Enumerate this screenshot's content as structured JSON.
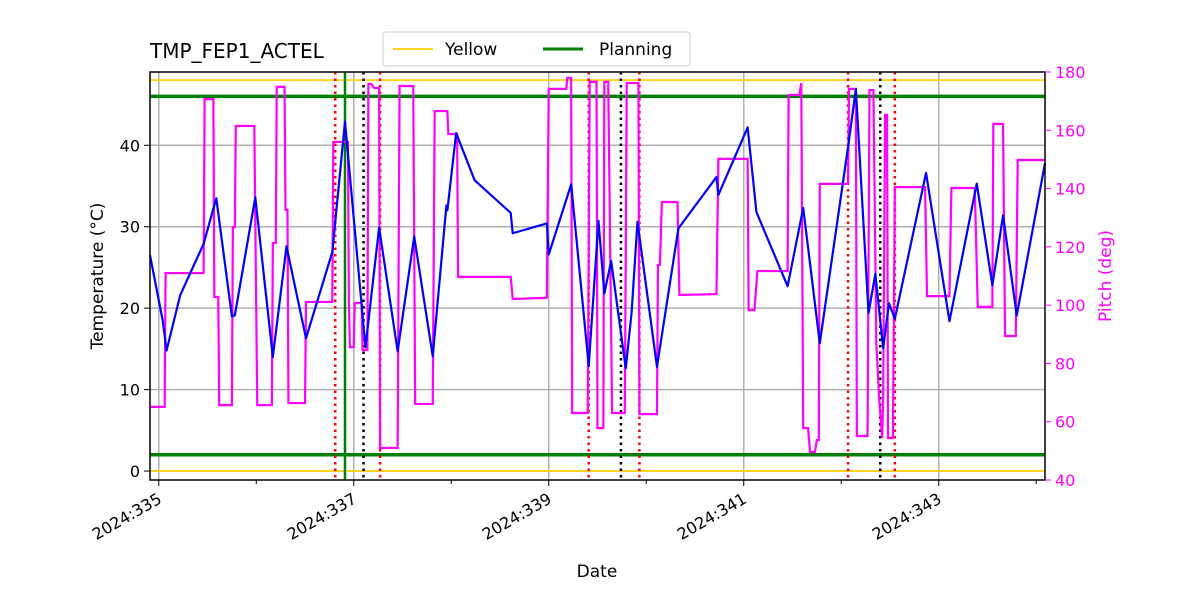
{
  "chart_data": {
    "type": "line",
    "title": "TMP_FEP1_ACTEL",
    "xlabel": "Date",
    "ylabel": "Temperature (°C)",
    "y2label": "Pitch (deg)",
    "xlim": [
      334.91,
      344.09
    ],
    "ylim": [
      -1.1,
      49.0
    ],
    "y2lim": [
      40,
      180
    ],
    "x_ticks": [
      335,
      337,
      339,
      341,
      343
    ],
    "x_tick_labels": [
      "2024:335",
      "2024:337",
      "2024:339",
      "2024:341",
      "2024:343"
    ],
    "x_minor_ticks": [
      336,
      338,
      340,
      342,
      344
    ],
    "y_ticks": [
      0,
      10,
      20,
      30,
      40
    ],
    "y2_ticks": [
      40,
      60,
      80,
      100,
      120,
      140,
      160,
      180
    ],
    "grid": true,
    "legend_placement": "top-center",
    "colors": {
      "temperature": "#0000ff",
      "pitch": "#ff00ff",
      "yellow": "#ffd21f",
      "planning": "#008000",
      "axis2": "#ff00ff",
      "red_event": "#ff0000",
      "black_event": "#000000",
      "green_event": "#008000",
      "grid": "#b0b0b0"
    },
    "limits": [
      {
        "name": "Yellow",
        "values": [
          48,
          0
        ],
        "color": "#ffd21f"
      },
      {
        "name": "Planning",
        "values": [
          46,
          2
        ],
        "color": "#008000"
      }
    ],
    "event_lines": {
      "red_dotted": [
        336.81,
        337.27,
        339.41,
        339.93,
        342.07,
        342.55
      ],
      "black_dotted": [
        337.1,
        339.74,
        342.4
      ],
      "green_solid": [
        336.91
      ]
    },
    "temperature": [
      [
        334.91,
        26.5
      ],
      [
        335.04,
        18.5
      ],
      [
        335.08,
        14.8
      ],
      [
        335.22,
        21.6
      ],
      [
        335.46,
        27.9
      ],
      [
        335.59,
        33.5
      ],
      [
        335.75,
        19.0
      ],
      [
        335.78,
        19.1
      ],
      [
        335.99,
        33.6
      ],
      [
        336.17,
        14.0
      ],
      [
        336.31,
        27.6
      ],
      [
        336.51,
        16.3
      ],
      [
        336.78,
        26.9
      ],
      [
        336.91,
        42.9
      ],
      [
        337.12,
        15.2
      ],
      [
        337.26,
        29.9
      ],
      [
        337.45,
        14.7
      ],
      [
        337.62,
        28.8
      ],
      [
        337.81,
        14.1
      ],
      [
        337.95,
        32.6
      ],
      [
        337.96,
        32.0
      ],
      [
        338.05,
        41.5
      ],
      [
        338.24,
        35.7
      ],
      [
        338.61,
        31.7
      ],
      [
        338.63,
        29.2
      ],
      [
        338.98,
        30.4
      ],
      [
        339.0,
        26.6
      ],
      [
        339.23,
        35.2
      ],
      [
        339.41,
        12.9
      ],
      [
        339.51,
        30.7
      ],
      [
        339.57,
        21.8
      ],
      [
        339.64,
        25.8
      ],
      [
        339.79,
        12.6
      ],
      [
        339.85,
        19.5
      ],
      [
        339.91,
        30.6
      ],
      [
        340.11,
        12.8
      ],
      [
        340.33,
        29.8
      ],
      [
        340.72,
        36.1
      ],
      [
        340.74,
        33.9
      ],
      [
        341.04,
        42.2
      ],
      [
        341.13,
        31.8
      ],
      [
        341.45,
        22.7
      ],
      [
        341.61,
        32.3
      ],
      [
        341.78,
        15.7
      ],
      [
        342.07,
        39.8
      ],
      [
        342.15,
        46.9
      ],
      [
        342.28,
        19.4
      ],
      [
        342.35,
        24.2
      ],
      [
        342.43,
        15.1
      ],
      [
        342.49,
        20.6
      ],
      [
        342.55,
        18.7
      ],
      [
        342.87,
        36.6
      ],
      [
        343.11,
        18.4
      ],
      [
        343.39,
        35.3
      ],
      [
        343.55,
        22.8
      ],
      [
        343.66,
        31.4
      ],
      [
        343.8,
        19.1
      ],
      [
        344.09,
        37.8
      ]
    ],
    "pitch": [
      [
        334.91,
        65.1
      ],
      [
        335.06,
        65.1
      ],
      [
        335.07,
        111.0
      ],
      [
        335.46,
        111.0
      ],
      [
        335.47,
        170.7
      ],
      [
        335.56,
        170.7
      ],
      [
        335.57,
        102.8
      ],
      [
        335.61,
        102.8
      ],
      [
        335.62,
        65.7
      ],
      [
        335.75,
        65.7
      ],
      [
        335.76,
        126.8
      ],
      [
        335.78,
        126.8
      ],
      [
        335.79,
        161.5
      ],
      [
        335.98,
        161.5
      ],
      [
        336.01,
        65.7
      ],
      [
        336.16,
        65.7
      ],
      [
        336.17,
        121.3
      ],
      [
        336.2,
        121.3
      ],
      [
        336.21,
        174.9
      ],
      [
        336.29,
        174.9
      ],
      [
        336.3,
        132.7
      ],
      [
        336.32,
        132.7
      ],
      [
        336.33,
        66.4
      ],
      [
        336.5,
        66.4
      ],
      [
        336.51,
        101.1
      ],
      [
        336.78,
        101.1
      ],
      [
        336.79,
        156.0
      ],
      [
        336.94,
        156.0
      ],
      [
        336.95,
        101.1
      ],
      [
        336.96,
        85.6
      ],
      [
        337.0,
        85.6
      ],
      [
        337.01,
        100.7
      ],
      [
        337.08,
        100.7
      ],
      [
        337.09,
        84.6
      ],
      [
        337.14,
        84.6
      ],
      [
        337.15,
        175.9
      ],
      [
        337.18,
        175.9
      ],
      [
        337.21,
        174.5
      ],
      [
        337.26,
        174.5
      ],
      [
        337.27,
        51.0
      ],
      [
        337.45,
        51.0
      ],
      [
        337.47,
        175.2
      ],
      [
        337.61,
        175.2
      ],
      [
        337.63,
        66.1
      ],
      [
        337.81,
        66.1
      ],
      [
        337.83,
        166.6
      ],
      [
        337.96,
        166.6
      ],
      [
        337.97,
        158.7
      ],
      [
        338.06,
        158.7
      ],
      [
        338.07,
        109.7
      ],
      [
        338.61,
        109.7
      ],
      [
        338.63,
        102.1
      ],
      [
        338.98,
        102.5
      ],
      [
        339.0,
        174.2
      ],
      [
        339.18,
        174.2
      ],
      [
        339.19,
        178.0
      ],
      [
        339.23,
        178.0
      ],
      [
        339.24,
        63.0
      ],
      [
        339.4,
        63.0
      ],
      [
        339.42,
        176.6
      ],
      [
        339.49,
        176.6
      ],
      [
        339.5,
        57.8
      ],
      [
        339.56,
        57.8
      ],
      [
        339.57,
        176.6
      ],
      [
        339.61,
        176.6
      ],
      [
        339.65,
        63.0
      ],
      [
        339.78,
        63.0
      ],
      [
        339.8,
        176.2
      ],
      [
        339.92,
        176.2
      ],
      [
        339.93,
        62.6
      ],
      [
        340.11,
        62.6
      ],
      [
        340.12,
        113.8
      ],
      [
        340.14,
        113.8
      ],
      [
        340.16,
        135.4
      ],
      [
        340.32,
        135.4
      ],
      [
        340.34,
        103.5
      ],
      [
        340.72,
        103.8
      ],
      [
        340.74,
        150.2
      ],
      [
        341.04,
        150.2
      ],
      [
        341.05,
        98.3
      ],
      [
        341.11,
        98.3
      ],
      [
        341.14,
        111.7
      ],
      [
        341.45,
        111.7
      ],
      [
        341.46,
        172.1
      ],
      [
        341.57,
        172.1
      ],
      [
        341.59,
        176.2
      ],
      [
        341.61,
        57.8
      ],
      [
        341.66,
        57.8
      ],
      [
        341.68,
        49.6
      ],
      [
        341.73,
        49.6
      ],
      [
        341.75,
        53.7
      ],
      [
        341.77,
        53.7
      ],
      [
        341.78,
        141.6
      ],
      [
        342.07,
        141.6
      ],
      [
        342.08,
        174.2
      ],
      [
        342.15,
        174.2
      ],
      [
        342.16,
        55.1
      ],
      [
        342.27,
        55.1
      ],
      [
        342.29,
        173.8
      ],
      [
        342.33,
        173.8
      ],
      [
        342.36,
        86.7
      ],
      [
        342.39,
        67.5
      ],
      [
        342.42,
        54.4
      ],
      [
        342.43,
        67.5
      ],
      [
        342.45,
        165.3
      ],
      [
        342.47,
        165.3
      ],
      [
        342.48,
        54.4
      ],
      [
        342.53,
        54.4
      ],
      [
        342.55,
        140.5
      ],
      [
        342.86,
        140.5
      ],
      [
        342.88,
        103.1
      ],
      [
        343.11,
        103.1
      ],
      [
        343.13,
        140.2
      ],
      [
        343.37,
        140.2
      ],
      [
        343.4,
        99.4
      ],
      [
        343.55,
        99.4
      ],
      [
        343.56,
        162.2
      ],
      [
        343.66,
        162.2
      ],
      [
        343.68,
        89.4
      ],
      [
        343.79,
        89.4
      ],
      [
        343.81,
        149.8
      ],
      [
        344.09,
        149.8
      ]
    ],
    "legend": [
      "Yellow",
      "Planning"
    ]
  }
}
